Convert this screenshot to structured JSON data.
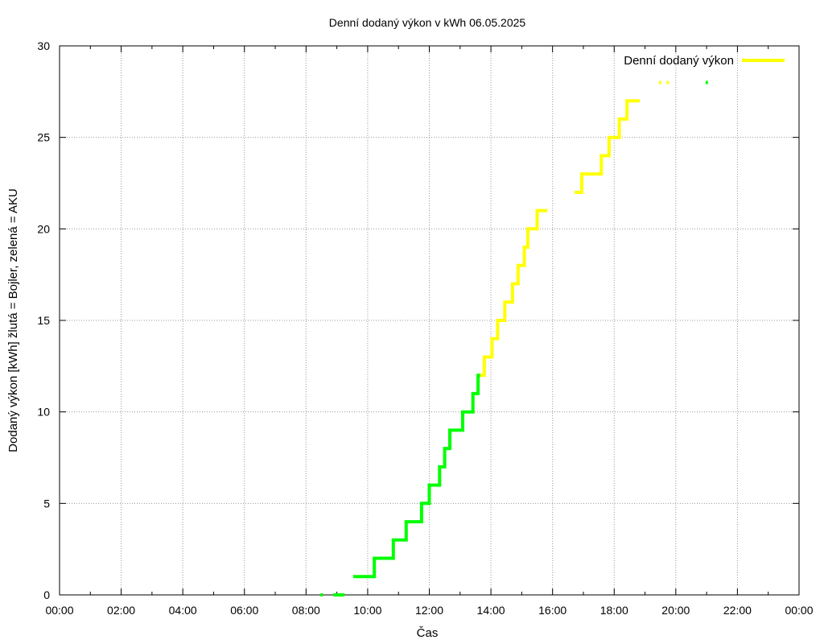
{
  "chart_data": {
    "type": "line",
    "title": "Denní dodaný výkon v kWh 06.05.2025",
    "xlabel": "Čas",
    "ylabel": "Dodaný výkon [kWh]  žlutá = Bojler, zelená = AKU",
    "xlim": [
      "00:00",
      "24:00"
    ],
    "ylim": [
      0,
      30
    ],
    "x_ticks": [
      "00:00",
      "02:00",
      "04:00",
      "06:00",
      "08:00",
      "10:00",
      "12:00",
      "14:00",
      "16:00",
      "18:00",
      "20:00",
      "22:00",
      "00:00"
    ],
    "y_ticks": [
      "0",
      "5",
      "10",
      "15",
      "20",
      "25",
      "30"
    ],
    "grid": true,
    "legend_position": "top-right",
    "series": [
      {
        "name": "Denní dodaný výkon",
        "color": "#ffff00",
        "step": true,
        "x": [
          "13:35",
          "13:47",
          "14:02",
          "14:13",
          "14:27",
          "14:42",
          "14:53",
          "15:05",
          "15:12",
          "15:30",
          "15:50",
          "16:27",
          "16:43",
          "16:57",
          "17:20",
          "17:35",
          "17:50",
          "18:10",
          "18:25",
          "18:50",
          "19:20",
          "19:27",
          "19:35",
          "19:42"
        ],
        "y": [
          12,
          13,
          14,
          15,
          16,
          17,
          18,
          19,
          20,
          21,
          21,
          null,
          22,
          23,
          23,
          24,
          25,
          26,
          27,
          27,
          null,
          28,
          null,
          28
        ]
      },
      {
        "color": "#00ff00",
        "step": true,
        "x": [
          "08:28",
          "08:33",
          "08:40",
          "08:53",
          "09:15",
          "09:30",
          "09:32",
          "10:13",
          "10:20",
          "10:50",
          "10:55",
          "11:15",
          "11:35",
          "11:45",
          "12:00",
          "12:15",
          "12:20",
          "12:30",
          "12:40",
          "12:50",
          "13:05",
          "13:10",
          "13:25",
          "13:35",
          "13:39",
          "20:35",
          "20:58"
        ],
        "y": [
          0,
          0,
          null,
          0,
          0,
          null,
          1,
          2,
          2,
          3,
          3,
          4,
          4,
          5,
          6,
          6,
          7,
          8,
          9,
          9,
          10,
          10,
          11,
          12,
          12,
          null,
          28
        ]
      }
    ]
  }
}
